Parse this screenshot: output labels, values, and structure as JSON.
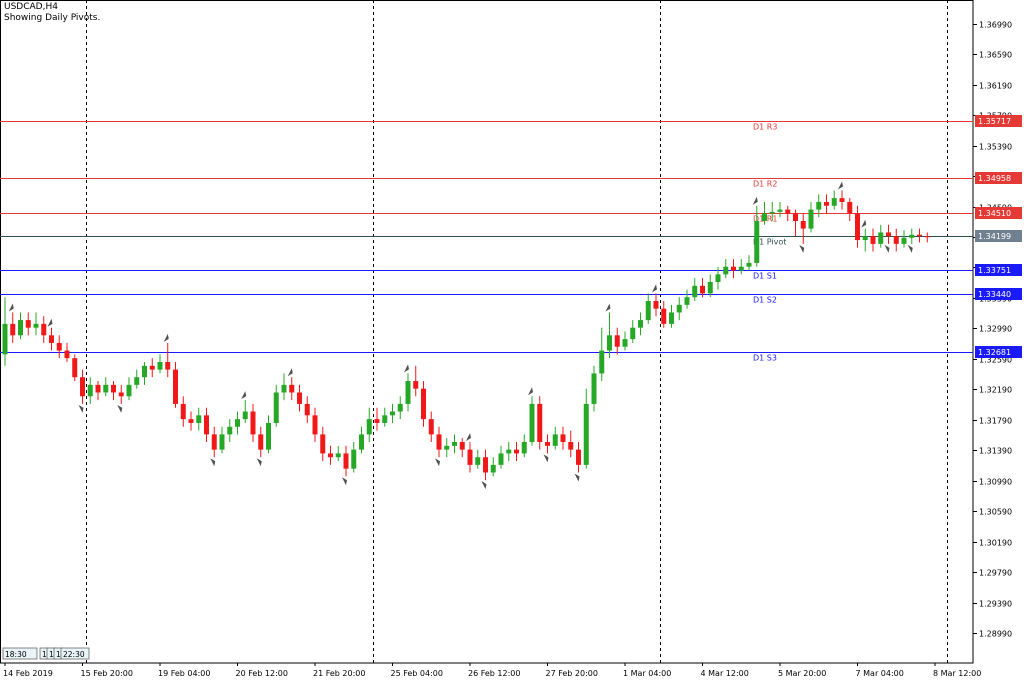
{
  "header": {
    "title": "USDCAD,H4",
    "subtitle": "Showing Daily Pivots."
  },
  "colors": {
    "bull": "#26a826",
    "bear": "#f01818",
    "resistance": "#e53935",
    "support": "#1a1aff",
    "pivot": "#2f4f4f",
    "current": "#708090",
    "axis": "#000000"
  },
  "chart_data": {
    "type": "candlestick",
    "symbol": "USDCAD",
    "timeframe": "H4",
    "ylim": [
      1.286,
      1.373
    ],
    "y_ticks": [
      "1.36990",
      "1.36590",
      "1.36190",
      "1.35790",
      "1.35390",
      "1.34990",
      "1.34590",
      "1.34190",
      "1.33790",
      "1.33390",
      "1.32990",
      "1.32590",
      "1.32190",
      "1.31790",
      "1.31390",
      "1.30990",
      "1.30590",
      "1.30190",
      "1.29790",
      "1.29390",
      "1.28990"
    ],
    "x_ticks": [
      {
        "label": "14 Feb 2019",
        "bar": 0
      },
      {
        "label": "15 Feb 20:00",
        "bar": 10
      },
      {
        "label": "19 Feb 04:00",
        "bar": 20
      },
      {
        "label": "20 Feb 12:00",
        "bar": 30
      },
      {
        "label": "21 Feb 20:00",
        "bar": 40
      },
      {
        "label": "25 Feb 04:00",
        "bar": 50
      },
      {
        "label": "26 Feb 12:00",
        "bar": 60
      },
      {
        "label": "27 Feb 20:00",
        "bar": 70
      },
      {
        "label": "1 Mar 04:00",
        "bar": 80
      },
      {
        "label": "4 Mar 12:00",
        "bar": 90
      },
      {
        "label": "5 Mar 20:00",
        "bar": 100
      },
      {
        "label": "7 Mar 04:00",
        "bar": 110
      },
      {
        "label": "8 Mar 12:00",
        "bar": 120
      }
    ],
    "day_separators": [
      11,
      48,
      85,
      122
    ],
    "pivot_levels": [
      {
        "name": "D1 R3",
        "value": 1.35717,
        "label": "1.35717",
        "kind": "resistance"
      },
      {
        "name": "D1 R2",
        "value": 1.34958,
        "label": "1.34958",
        "kind": "resistance"
      },
      {
        "name": "D1 R1",
        "value": 1.3451,
        "label": "1.34510",
        "kind": "resistance"
      },
      {
        "name": "D1 Pivot",
        "value": 1.34199,
        "label": "1.34199",
        "kind": "pivot"
      },
      {
        "name": "D1 S1",
        "value": 1.33751,
        "label": "1.33751",
        "kind": "support"
      },
      {
        "name": "D1 S2",
        "value": 1.3344,
        "label": "1.33440",
        "kind": "support"
      },
      {
        "name": "D1 S3",
        "value": 1.32681,
        "label": "1.32681",
        "kind": "support"
      }
    ],
    "current_price": 1.34199,
    "candles": [
      [
        1.3265,
        1.3305,
        1.334,
        1.325
      ],
      [
        1.3305,
        1.329,
        1.332,
        1.328
      ],
      [
        1.329,
        1.331,
        1.332,
        1.3285
      ],
      [
        1.331,
        1.33,
        1.332,
        1.329
      ],
      [
        1.33,
        1.3305,
        1.332,
        1.329
      ],
      [
        1.3305,
        1.329,
        1.3315,
        1.328
      ],
      [
        1.329,
        1.328,
        1.33,
        1.327
      ],
      [
        1.328,
        1.327,
        1.329,
        1.326
      ],
      [
        1.327,
        1.326,
        1.328,
        1.3255
      ],
      [
        1.326,
        1.3235,
        1.3265,
        1.323
      ],
      [
        1.3235,
        1.321,
        1.3245,
        1.32
      ],
      [
        1.321,
        1.3225,
        1.3235,
        1.32
      ],
      [
        1.3225,
        1.3215,
        1.323,
        1.3205
      ],
      [
        1.3215,
        1.3225,
        1.3235,
        1.321
      ],
      [
        1.3225,
        1.3215,
        1.323,
        1.3205
      ],
      [
        1.3215,
        1.321,
        1.3225,
        1.32
      ],
      [
        1.321,
        1.3225,
        1.3235,
        1.3205
      ],
      [
        1.3225,
        1.3235,
        1.3245,
        1.322
      ],
      [
        1.3235,
        1.325,
        1.3255,
        1.3225
      ],
      [
        1.325,
        1.3245,
        1.326,
        1.3235
      ],
      [
        1.3245,
        1.3255,
        1.3265,
        1.324
      ],
      [
        1.3255,
        1.3245,
        1.328,
        1.3235
      ],
      [
        1.3245,
        1.32,
        1.3255,
        1.3195
      ],
      [
        1.32,
        1.318,
        1.321,
        1.317
      ],
      [
        1.318,
        1.3175,
        1.319,
        1.3165
      ],
      [
        1.3175,
        1.3185,
        1.3195,
        1.3165
      ],
      [
        1.3185,
        1.316,
        1.3195,
        1.315
      ],
      [
        1.316,
        1.314,
        1.317,
        1.313
      ],
      [
        1.314,
        1.316,
        1.317,
        1.3135
      ],
      [
        1.316,
        1.317,
        1.318,
        1.315
      ],
      [
        1.317,
        1.318,
        1.319,
        1.316
      ],
      [
        1.318,
        1.319,
        1.3205,
        1.3175
      ],
      [
        1.319,
        1.316,
        1.32,
        1.315
      ],
      [
        1.316,
        1.314,
        1.317,
        1.313
      ],
      [
        1.314,
        1.3175,
        1.3185,
        1.3135
      ],
      [
        1.3175,
        1.3215,
        1.3225,
        1.317
      ],
      [
        1.3215,
        1.3225,
        1.324,
        1.3205
      ],
      [
        1.3225,
        1.3215,
        1.3235,
        1.3205
      ],
      [
        1.3215,
        1.32,
        1.3225,
        1.319
      ],
      [
        1.32,
        1.3185,
        1.321,
        1.3175
      ],
      [
        1.3185,
        1.316,
        1.3195,
        1.315
      ],
      [
        1.316,
        1.3135,
        1.317,
        1.3125
      ],
      [
        1.3135,
        1.313,
        1.3145,
        1.312
      ],
      [
        1.313,
        1.3135,
        1.3145,
        1.3125
      ],
      [
        1.3135,
        1.3115,
        1.3145,
        1.3105
      ],
      [
        1.3115,
        1.314,
        1.315,
        1.311
      ],
      [
        1.314,
        1.316,
        1.317,
        1.3135
      ],
      [
        1.316,
        1.318,
        1.3195,
        1.315
      ],
      [
        1.318,
        1.3175,
        1.3195,
        1.3165
      ],
      [
        1.3175,
        1.3185,
        1.3195,
        1.317
      ],
      [
        1.3185,
        1.319,
        1.32,
        1.3175
      ],
      [
        1.319,
        1.32,
        1.321,
        1.318
      ],
      [
        1.32,
        1.323,
        1.324,
        1.319
      ],
      [
        1.323,
        1.322,
        1.325,
        1.321
      ],
      [
        1.322,
        1.318,
        1.323,
        1.317
      ],
      [
        1.318,
        1.316,
        1.319,
        1.315
      ],
      [
        1.316,
        1.314,
        1.317,
        1.313
      ],
      [
        1.314,
        1.3145,
        1.3155,
        1.313
      ],
      [
        1.3145,
        1.315,
        1.316,
        1.3135
      ],
      [
        1.315,
        1.314,
        1.3155,
        1.313
      ],
      [
        1.314,
        1.312,
        1.315,
        1.311
      ],
      [
        1.312,
        1.313,
        1.314,
        1.3115
      ],
      [
        1.313,
        1.311,
        1.314,
        1.31
      ],
      [
        1.311,
        1.312,
        1.313,
        1.3105
      ],
      [
        1.312,
        1.3135,
        1.3145,
        1.3115
      ],
      [
        1.3135,
        1.314,
        1.315,
        1.3125
      ],
      [
        1.314,
        1.3135,
        1.315,
        1.3125
      ],
      [
        1.3135,
        1.315,
        1.316,
        1.313
      ],
      [
        1.315,
        1.32,
        1.321,
        1.3145
      ],
      [
        1.32,
        1.315,
        1.321,
        1.314
      ],
      [
        1.315,
        1.3145,
        1.316,
        1.3135
      ],
      [
        1.3145,
        1.316,
        1.317,
        1.314
      ],
      [
        1.316,
        1.315,
        1.317,
        1.314
      ],
      [
        1.315,
        1.314,
        1.3165,
        1.313
      ],
      [
        1.314,
        1.312,
        1.315,
        1.311
      ],
      [
        1.312,
        1.32,
        1.322,
        1.3115
      ],
      [
        1.32,
        1.324,
        1.325,
        1.319
      ],
      [
        1.324,
        1.327,
        1.33,
        1.323
      ],
      [
        1.327,
        1.329,
        1.332,
        1.326
      ],
      [
        1.329,
        1.3275,
        1.33,
        1.3265
      ],
      [
        1.3275,
        1.3285,
        1.3295,
        1.327
      ],
      [
        1.3285,
        1.33,
        1.331,
        1.328
      ],
      [
        1.33,
        1.331,
        1.332,
        1.329
      ],
      [
        1.331,
        1.3335,
        1.3345,
        1.3305
      ],
      [
        1.3335,
        1.3325,
        1.3345,
        1.3315
      ],
      [
        1.3325,
        1.3305,
        1.3335,
        1.33
      ],
      [
        1.3305,
        1.332,
        1.333,
        1.33
      ],
      [
        1.332,
        1.333,
        1.334,
        1.331
      ],
      [
        1.333,
        1.334,
        1.335,
        1.3325
      ],
      [
        1.334,
        1.3355,
        1.3365,
        1.3335
      ],
      [
        1.3355,
        1.3345,
        1.3365,
        1.334
      ],
      [
        1.3345,
        1.336,
        1.337,
        1.334
      ],
      [
        1.336,
        1.337,
        1.338,
        1.335
      ],
      [
        1.337,
        1.338,
        1.339,
        1.3365
      ],
      [
        1.338,
        1.3375,
        1.339,
        1.3365
      ],
      [
        1.3375,
        1.338,
        1.339,
        1.337
      ],
      [
        1.338,
        1.3385,
        1.3395,
        1.3375
      ],
      [
        1.3385,
        1.344,
        1.346,
        1.338
      ],
      [
        1.344,
        1.345,
        1.3465,
        1.3435
      ],
      [
        1.345,
        1.3452,
        1.3465,
        1.344
      ],
      [
        1.3452,
        1.3455,
        1.3465,
        1.3445
      ],
      [
        1.3455,
        1.345,
        1.346,
        1.344
      ],
      [
        1.345,
        1.344,
        1.3455,
        1.342
      ],
      [
        1.344,
        1.343,
        1.345,
        1.341
      ],
      [
        1.343,
        1.3455,
        1.3465,
        1.3425
      ],
      [
        1.3455,
        1.3465,
        1.3475,
        1.3445
      ],
      [
        1.3465,
        1.346,
        1.3475,
        1.345
      ],
      [
        1.346,
        1.347,
        1.348,
        1.3455
      ],
      [
        1.347,
        1.3465,
        1.348,
        1.3455
      ],
      [
        1.3465,
        1.345,
        1.347,
        1.344
      ],
      [
        1.345,
        1.3415,
        1.346,
        1.3405
      ],
      [
        1.3415,
        1.342,
        1.343,
        1.34
      ],
      [
        1.342,
        1.341,
        1.343,
        1.34
      ],
      [
        1.341,
        1.3425,
        1.3435,
        1.3405
      ],
      [
        1.3425,
        1.342,
        1.3435,
        1.341
      ],
      [
        1.342,
        1.341,
        1.343,
        1.34
      ],
      [
        1.341,
        1.3418,
        1.3428,
        1.3405
      ],
      [
        1.3418,
        1.3422,
        1.343,
        1.341
      ],
      [
        1.3422,
        1.342,
        1.343,
        1.3412
      ],
      [
        1.342,
        1.3419,
        1.3425,
        1.3412
      ]
    ],
    "fractals": [
      {
        "bar": 1,
        "dir": "up"
      },
      {
        "bar": 6,
        "dir": "up"
      },
      {
        "bar": 10,
        "dir": "down"
      },
      {
        "bar": 15,
        "dir": "down"
      },
      {
        "bar": 21,
        "dir": "up"
      },
      {
        "bar": 27,
        "dir": "down"
      },
      {
        "bar": 31,
        "dir": "up"
      },
      {
        "bar": 33,
        "dir": "down"
      },
      {
        "bar": 37,
        "dir": "up"
      },
      {
        "bar": 44,
        "dir": "down"
      },
      {
        "bar": 52,
        "dir": "up"
      },
      {
        "bar": 56,
        "dir": "down"
      },
      {
        "bar": 60,
        "dir": "up"
      },
      {
        "bar": 62,
        "dir": "down"
      },
      {
        "bar": 68,
        "dir": "up"
      },
      {
        "bar": 70,
        "dir": "down"
      },
      {
        "bar": 74,
        "dir": "down"
      },
      {
        "bar": 78,
        "dir": "up"
      },
      {
        "bar": 84,
        "dir": "up"
      },
      {
        "bar": 97,
        "dir": "up"
      },
      {
        "bar": 103,
        "dir": "down"
      },
      {
        "bar": 108,
        "dir": "up"
      },
      {
        "bar": 111,
        "dir": "up"
      },
      {
        "bar": 114,
        "dir": "down"
      },
      {
        "bar": 117,
        "dir": "down"
      }
    ],
    "time_labels": [
      "18:30",
      "1",
      "1",
      "1",
      "22:30"
    ]
  }
}
